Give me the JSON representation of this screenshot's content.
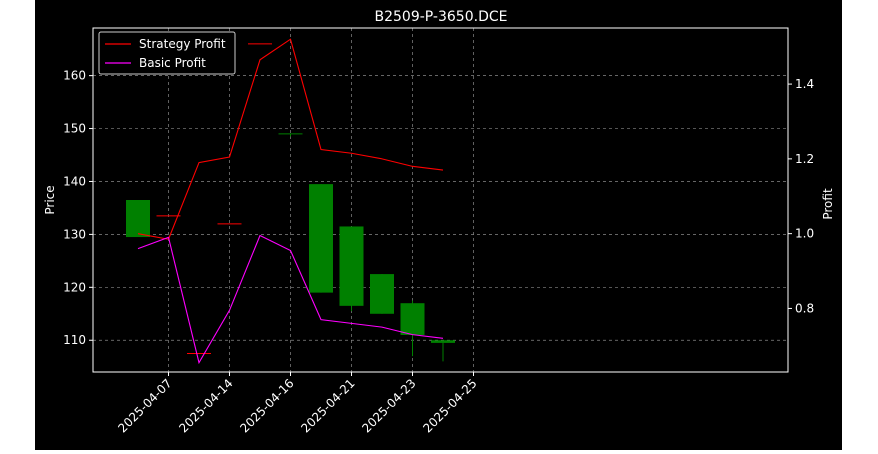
{
  "chart_data": {
    "type": "candlestick",
    "title": "B2509-P-3650.DCE",
    "ylabel_left": "Price",
    "ylabel_right": "Profit",
    "x_ticks": [
      "2025-04-07",
      "2025-04-14",
      "2025-04-16",
      "2025-04-21",
      "2025-04-23",
      "2025-04-25"
    ],
    "y_left_ticks": [
      110,
      120,
      130,
      140,
      150,
      160
    ],
    "y_right_ticks": [
      "0.8",
      "1.0",
      "1.2",
      "1.4"
    ],
    "y_left_lim": [
      104,
      169
    ],
    "y_right_lim": [
      0.63,
      1.55
    ],
    "grid": true,
    "legend_position": "top-left",
    "candles": [
      {
        "date": "2025-04-07",
        "open": 129.5,
        "high": 136.5,
        "low": 129.5,
        "close": 136.5
      },
      {
        "date": "2025-04-11",
        "open": 133.5,
        "high": 133.5,
        "low": 133.5,
        "close": 133.5
      },
      {
        "date": "2025-04-14",
        "open": 107.5,
        "high": 107.5,
        "low": 107.5,
        "close": 107.5
      },
      {
        "date": "2025-04-15",
        "open": 132.0,
        "high": 132.0,
        "low": 132.0,
        "close": 132.0
      },
      {
        "date": "2025-04-16",
        "open": 166.0,
        "high": 166.0,
        "low": 166.0,
        "close": 166.0
      },
      {
        "date": "2025-04-17",
        "open": 149.0,
        "high": 149.0,
        "low": 148.5,
        "close": 149.0
      },
      {
        "date": "2025-04-21",
        "open": 119.0,
        "high": 139.5,
        "low": 119.0,
        "close": 139.5
      },
      {
        "date": "2025-04-22",
        "open": 116.5,
        "high": 131.5,
        "low": 115.5,
        "close": 131.5
      },
      {
        "date": "2025-04-23",
        "open": 115.0,
        "high": 122.5,
        "low": 115.0,
        "close": 122.5
      },
      {
        "date": "2025-04-24",
        "open": 111.0,
        "high": 117.5,
        "low": 107.0,
        "close": 117.0
      },
      {
        "date": "2025-04-25",
        "open": 109.5,
        "high": 110.0,
        "low": 106.0,
        "close": 110.0
      }
    ],
    "series": [
      {
        "name": "Strategy Profit",
        "color": "#ff0000",
        "values": [
          1.0,
          0.985,
          1.19,
          1.205,
          1.465,
          1.52,
          1.225,
          1.215,
          1.2,
          1.18,
          1.17
        ]
      },
      {
        "name": "Basic Profit",
        "color": "#ff00ff",
        "values": [
          0.96,
          0.99,
          0.655,
          0.795,
          0.995,
          0.955,
          0.77,
          0.76,
          0.75,
          0.73,
          0.72
        ]
      }
    ]
  }
}
